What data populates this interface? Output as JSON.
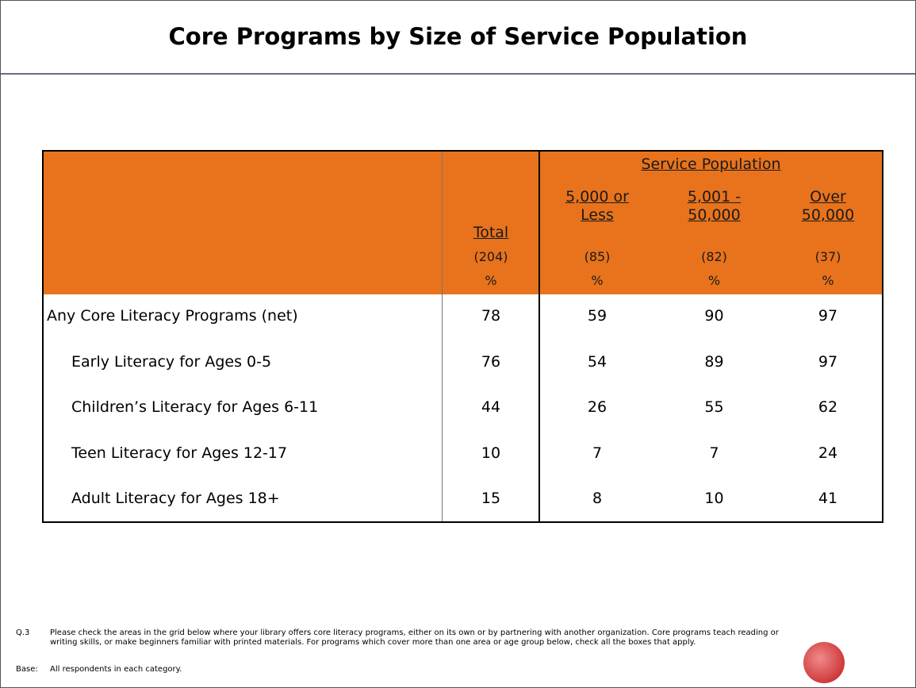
{
  "title": "Core Programs by Size of Service Population",
  "table": {
    "group_header": "Service Population",
    "columns": [
      {
        "label": "Total",
        "base": "(204)",
        "unit": "%"
      },
      {
        "label": "5,000 or Less",
        "base": "(85)",
        "unit": "%"
      },
      {
        "label": "5,001 - 50,000",
        "base": "(82)",
        "unit": "%"
      },
      {
        "label": "Over 50,000",
        "base": "(37)",
        "unit": "%"
      }
    ],
    "rows": [
      {
        "label": "Any Core Literacy Programs (net)",
        "values": [
          78,
          59,
          90,
          97
        ]
      },
      {
        "label": "Early Literacy for Ages 0-5",
        "values": [
          76,
          54,
          89,
          97
        ]
      },
      {
        "label": "Children’s Literacy for Ages 6-11",
        "values": [
          44,
          26,
          55,
          62
        ]
      },
      {
        "label": "Teen Literacy for Ages 12-17",
        "values": [
          10,
          7,
          7,
          24
        ]
      },
      {
        "label": "Adult Literacy for Ages 18+",
        "values": [
          15,
          8,
          10,
          41
        ]
      }
    ]
  },
  "footnotes": [
    {
      "tag": "Q.3",
      "text": "Please check the areas in the grid below where your library offers core literacy programs, either on its own or by partnering with another organization.  Core programs teach reading or writing skills, or make beginners familiar with printed materials.  For programs which cover more than one area or age group below, check all the boxes that apply."
    },
    {
      "tag": "Base:",
      "text": "All respondents in each category."
    }
  ]
}
